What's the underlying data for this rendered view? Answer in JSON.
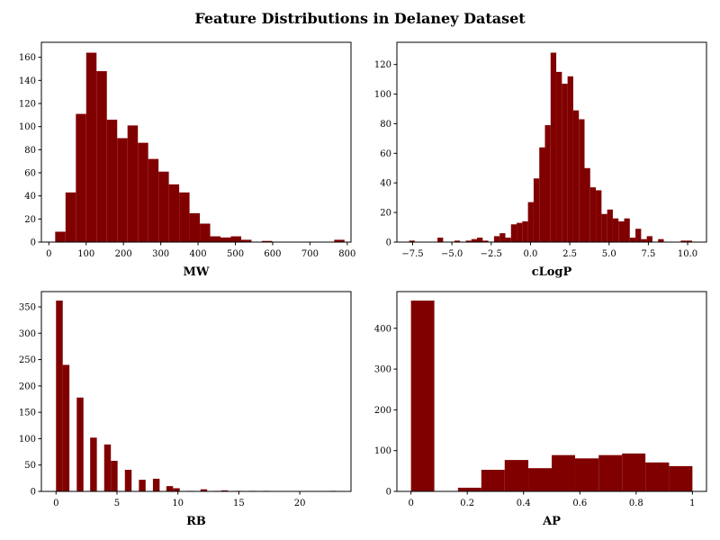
{
  "figure": {
    "title": "Feature Distributions in Delaney Dataset",
    "bar_color": "#800000"
  },
  "chart_data": [
    {
      "type": "bar",
      "xlabel": "MW",
      "xlim": [
        -20,
        810
      ],
      "ylim": [
        0,
        173
      ],
      "xticks": [
        0,
        100,
        200,
        300,
        400,
        500,
        600,
        700,
        800
      ],
      "yticks": [
        0,
        20,
        40,
        60,
        80,
        100,
        120,
        140,
        160
      ],
      "bins": [
        {
          "x0": 17.0,
          "x1": 44.7,
          "value": 9
        },
        {
          "x0": 44.7,
          "x1": 72.4,
          "value": 43
        },
        {
          "x0": 72.4,
          "x1": 100.1,
          "value": 111
        },
        {
          "x0": 100.1,
          "x1": 127.8,
          "value": 164
        },
        {
          "x0": 127.8,
          "x1": 155.5,
          "value": 148
        },
        {
          "x0": 155.5,
          "x1": 183.2,
          "value": 106
        },
        {
          "x0": 183.2,
          "x1": 210.9,
          "value": 90
        },
        {
          "x0": 210.9,
          "x1": 238.6,
          "value": 101
        },
        {
          "x0": 238.6,
          "x1": 266.3,
          "value": 86
        },
        {
          "x0": 266.3,
          "x1": 294.0,
          "value": 72
        },
        {
          "x0": 294.0,
          "x1": 321.7,
          "value": 61
        },
        {
          "x0": 321.7,
          "x1": 349.4,
          "value": 50
        },
        {
          "x0": 349.4,
          "x1": 377.1,
          "value": 43
        },
        {
          "x0": 377.1,
          "x1": 404.8,
          "value": 25
        },
        {
          "x0": 404.8,
          "x1": 432.5,
          "value": 16
        },
        {
          "x0": 432.5,
          "x1": 460.2,
          "value": 5
        },
        {
          "x0": 460.2,
          "x1": 487.9,
          "value": 4
        },
        {
          "x0": 487.9,
          "x1": 515.6,
          "value": 5
        },
        {
          "x0": 515.6,
          "x1": 543.3,
          "value": 2
        },
        {
          "x0": 543.3,
          "x1": 571.0,
          "value": 0
        },
        {
          "x0": 571.0,
          "x1": 598.7,
          "value": 1
        },
        {
          "x0": 598.7,
          "x1": 626.4,
          "value": 0
        },
        {
          "x0": 626.4,
          "x1": 654.1,
          "value": 0
        },
        {
          "x0": 654.1,
          "x1": 681.8,
          "value": 0
        },
        {
          "x0": 681.8,
          "x1": 709.5,
          "value": 0
        },
        {
          "x0": 709.5,
          "x1": 737.2,
          "value": 0
        },
        {
          "x0": 737.2,
          "x1": 764.9,
          "value": 0
        },
        {
          "x0": 764.9,
          "x1": 792.6,
          "value": 2
        }
      ]
    },
    {
      "type": "bar",
      "xlabel": "cLogP",
      "xlim": [
        -8.5,
        11.2
      ],
      "ylim": [
        0,
        135
      ],
      "xticks": [
        -7.5,
        -5.0,
        -2.5,
        0.0,
        2.5,
        5.0,
        7.5,
        10.0
      ],
      "xtick_labels": [
        "−7.5",
        "−5.0",
        "−2.5",
        "0.0",
        "2.5",
        "5.0",
        "7.5",
        "10.0"
      ],
      "yticks": [
        0,
        20,
        40,
        60,
        80,
        100,
        120
      ],
      "bins": [
        {
          "x0": -7.72,
          "x1": -7.36,
          "value": 1
        },
        {
          "x0": -5.92,
          "x1": -5.56,
          "value": 3
        },
        {
          "x0": -4.84,
          "x1": -4.48,
          "value": 1
        },
        {
          "x0": -4.12,
          "x1": -3.76,
          "value": 1
        },
        {
          "x0": -3.76,
          "x1": -3.4,
          "value": 2
        },
        {
          "x0": -3.4,
          "x1": -3.04,
          "value": 3
        },
        {
          "x0": -3.04,
          "x1": -2.68,
          "value": 1
        },
        {
          "x0": -2.32,
          "x1": -1.96,
          "value": 4
        },
        {
          "x0": -1.96,
          "x1": -1.6,
          "value": 6
        },
        {
          "x0": -1.6,
          "x1": -1.24,
          "value": 3
        },
        {
          "x0": -1.24,
          "x1": -0.88,
          "value": 12
        },
        {
          "x0": -0.88,
          "x1": -0.52,
          "value": 13
        },
        {
          "x0": -0.52,
          "x1": -0.16,
          "value": 14
        },
        {
          "x0": -0.16,
          "x1": 0.2,
          "value": 27
        },
        {
          "x0": 0.2,
          "x1": 0.56,
          "value": 43
        },
        {
          "x0": 0.56,
          "x1": 0.92,
          "value": 64
        },
        {
          "x0": 0.92,
          "x1": 1.28,
          "value": 79
        },
        {
          "x0": 1.28,
          "x1": 1.64,
          "value": 128
        },
        {
          "x0": 1.64,
          "x1": 2.0,
          "value": 115
        },
        {
          "x0": 2.0,
          "x1": 2.36,
          "value": 107
        },
        {
          "x0": 2.36,
          "x1": 2.72,
          "value": 112
        },
        {
          "x0": 2.72,
          "x1": 3.08,
          "value": 89
        },
        {
          "x0": 3.08,
          "x1": 3.44,
          "value": 83
        },
        {
          "x0": 3.44,
          "x1": 3.8,
          "value": 50
        },
        {
          "x0": 3.8,
          "x1": 4.16,
          "value": 37
        },
        {
          "x0": 4.16,
          "x1": 4.52,
          "value": 35
        },
        {
          "x0": 4.52,
          "x1": 4.88,
          "value": 19
        },
        {
          "x0": 4.88,
          "x1": 5.24,
          "value": 22
        },
        {
          "x0": 5.24,
          "x1": 5.6,
          "value": 16
        },
        {
          "x0": 5.6,
          "x1": 5.96,
          "value": 14
        },
        {
          "x0": 5.96,
          "x1": 6.32,
          "value": 16
        },
        {
          "x0": 6.32,
          "x1": 6.68,
          "value": 3
        },
        {
          "x0": 6.68,
          "x1": 7.04,
          "value": 9
        },
        {
          "x0": 7.04,
          "x1": 7.4,
          "value": 2
        },
        {
          "x0": 7.4,
          "x1": 7.76,
          "value": 4
        },
        {
          "x0": 8.12,
          "x1": 8.48,
          "value": 2
        },
        {
          "x0": 9.56,
          "x1": 9.92,
          "value": 1
        },
        {
          "x0": 9.92,
          "x1": 10.28,
          "value": 1
        }
      ]
    },
    {
      "type": "bar",
      "xlabel": "RB",
      "xlim": [
        -1.2,
        24.2
      ],
      "ylim": [
        0,
        379
      ],
      "xticks": [
        0,
        5,
        10,
        15,
        20
      ],
      "yticks": [
        0,
        50,
        100,
        150,
        200,
        250,
        300,
        350
      ],
      "bins": [
        {
          "x0": 0.0,
          "x1": 0.55,
          "value": 362
        },
        {
          "x0": 0.55,
          "x1": 1.1,
          "value": 240
        },
        {
          "x0": 1.7,
          "x1": 2.25,
          "value": 178
        },
        {
          "x0": 2.8,
          "x1": 3.35,
          "value": 102
        },
        {
          "x0": 3.95,
          "x1": 4.5,
          "value": 89
        },
        {
          "x0": 4.5,
          "x1": 5.05,
          "value": 58
        },
        {
          "x0": 5.65,
          "x1": 6.2,
          "value": 41
        },
        {
          "x0": 6.8,
          "x1": 7.35,
          "value": 22
        },
        {
          "x0": 7.95,
          "x1": 8.5,
          "value": 24
        },
        {
          "x0": 9.05,
          "x1": 9.6,
          "value": 10
        },
        {
          "x0": 9.6,
          "x1": 10.15,
          "value": 6
        },
        {
          "x0": 10.75,
          "x1": 11.3,
          "value": 1
        },
        {
          "x0": 11.85,
          "x1": 12.4,
          "value": 4
        },
        {
          "x0": 13.0,
          "x1": 13.55,
          "value": 1
        },
        {
          "x0": 13.55,
          "x1": 14.1,
          "value": 2
        },
        {
          "x0": 14.7,
          "x1": 15.25,
          "value": 1
        },
        {
          "x0": 15.85,
          "x1": 16.4,
          "value": 1
        },
        {
          "x0": 16.95,
          "x1": 17.5,
          "value": 1
        },
        {
          "x0": 22.45,
          "x1": 23.0,
          "value": 1
        }
      ]
    },
    {
      "type": "bar",
      "xlabel": "AP",
      "xlim": [
        -0.05,
        1.05
      ],
      "ylim": [
        0,
        490
      ],
      "xticks": [
        0.0,
        0.2,
        0.4,
        0.6,
        0.8,
        1.0
      ],
      "yticks": [
        0,
        100,
        200,
        300,
        400
      ],
      "bins": [
        {
          "x0": 0.0,
          "x1": 0.083,
          "value": 468
        },
        {
          "x0": 0.167,
          "x1": 0.25,
          "value": 9
        },
        {
          "x0": 0.25,
          "x1": 0.333,
          "value": 53
        },
        {
          "x0": 0.333,
          "x1": 0.417,
          "value": 77
        },
        {
          "x0": 0.417,
          "x1": 0.5,
          "value": 57
        },
        {
          "x0": 0.5,
          "x1": 0.583,
          "value": 89
        },
        {
          "x0": 0.583,
          "x1": 0.667,
          "value": 81
        },
        {
          "x0": 0.667,
          "x1": 0.75,
          "value": 89
        },
        {
          "x0": 0.75,
          "x1": 0.833,
          "value": 93
        },
        {
          "x0": 0.833,
          "x1": 0.917,
          "value": 71
        },
        {
          "x0": 0.917,
          "x1": 1.0,
          "value": 62
        }
      ]
    }
  ]
}
